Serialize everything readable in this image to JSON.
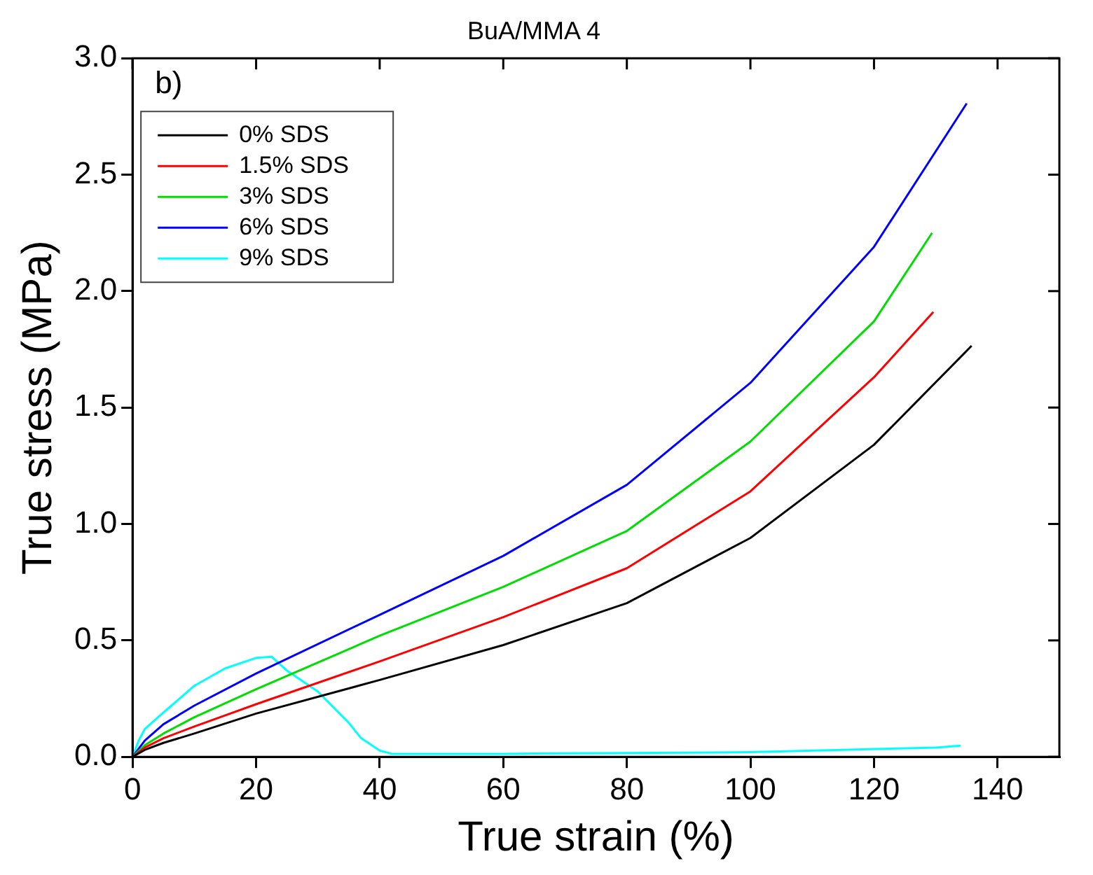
{
  "chart_data": {
    "type": "line",
    "title": "BuA/MMA 4",
    "xlabel": "True strain (%)",
    "ylabel": "True stress (MPa)",
    "annotations": [
      "b)"
    ],
    "xlim": [
      0,
      150
    ],
    "xticks": [
      0,
      20,
      40,
      60,
      80,
      100,
      120,
      140
    ],
    "ylim": [
      0,
      3
    ],
    "yticks": [
      {
        "value": 0,
        "label": "0.0"
      },
      {
        "value": 0.5,
        "label": "0.5"
      },
      {
        "value": 1,
        "label": "1.0"
      },
      {
        "value": 1.5,
        "label": "1.5"
      },
      {
        "value": 2,
        "label": "2.0"
      },
      {
        "value": 2.5,
        "label": "2.5"
      },
      {
        "value": 3,
        "label": "3.0"
      }
    ],
    "grid": false,
    "legend": "top left",
    "marker": "none",
    "line_style": "solid",
    "series": [
      {
        "name": "0% SDS",
        "color": "#000000",
        "x": [
          0,
          2,
          5,
          10,
          20,
          40,
          60,
          80,
          100,
          120,
          135.8
        ],
        "values": [
          0,
          0.03,
          0.06,
          0.1,
          0.186,
          0.33,
          0.48,
          0.66,
          0.94,
          1.34,
          1.765
        ]
      },
      {
        "name": "1.5% SDS",
        "color": "#ff0000",
        "x": [
          0,
          2,
          5,
          10,
          20,
          40,
          60,
          80,
          100,
          120,
          129.6
        ],
        "values": [
          0,
          0.04,
          0.08,
          0.13,
          0.226,
          0.41,
          0.6,
          0.81,
          1.14,
          1.63,
          1.91
        ]
      },
      {
        "name": "3% SDS",
        "color": "#00dd00",
        "x": [
          0,
          2,
          5,
          10,
          20,
          40,
          60,
          80,
          100,
          120,
          129.4
        ],
        "values": [
          0,
          0.05,
          0.1,
          0.17,
          0.29,
          0.52,
          0.73,
          0.97,
          1.354,
          1.87,
          2.25
        ]
      },
      {
        "name": "6% SDS",
        "color": "#0000ff",
        "x": [
          0,
          2,
          5,
          10,
          20,
          40,
          60,
          80,
          100,
          120,
          135
        ],
        "values": [
          0,
          0.07,
          0.14,
          0.22,
          0.358,
          0.61,
          0.863,
          1.168,
          1.606,
          2.19,
          2.806
        ]
      },
      {
        "name": "9% SDS",
        "color": "#00ffff",
        "x": [
          0,
          1,
          2,
          5,
          10,
          15,
          20,
          22.5,
          25,
          30,
          35,
          37,
          40,
          42,
          60,
          100,
          130,
          134
        ],
        "values": [
          0,
          0.07,
          0.12,
          0.19,
          0.305,
          0.38,
          0.425,
          0.43,
          0.37,
          0.28,
          0.146,
          0.08,
          0.027,
          0.013,
          0.013,
          0.02,
          0.04,
          0.048
        ]
      }
    ]
  }
}
